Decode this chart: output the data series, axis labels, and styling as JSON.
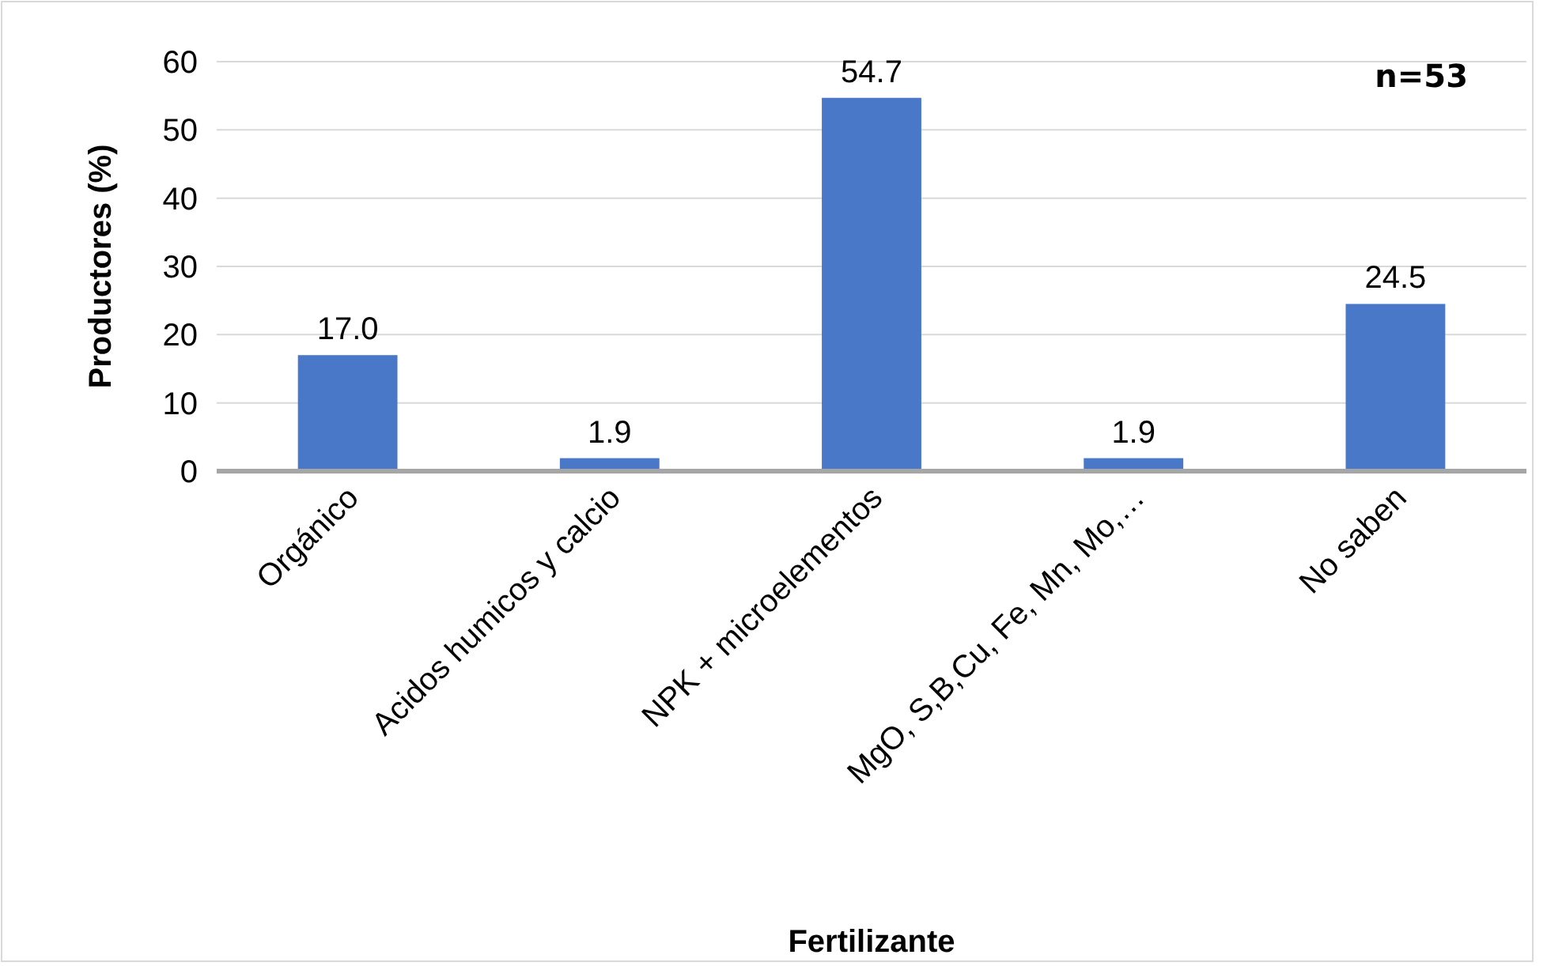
{
  "chart_data": {
    "type": "bar",
    "xlabel": "Fertilizante",
    "ylabel": "Productores (%)",
    "annotations": [
      "n=53"
    ],
    "categories": [
      "Orgánico",
      "Acidos humicos y calcio",
      "NPK + microelementos",
      "MgO, S,B,Cu, Fe, Mn, Mo,…",
      "No saben"
    ],
    "values": [
      17.0,
      1.9,
      54.7,
      1.9,
      24.5
    ],
    "value_labels": [
      "17.0",
      "1.9",
      "54.7",
      "1.9",
      "24.5"
    ],
    "color": "#4a78c8",
    "ylim": [
      0,
      60
    ],
    "yticks": [
      0,
      10,
      20,
      30,
      40,
      50,
      60
    ],
    "grid": "y"
  }
}
